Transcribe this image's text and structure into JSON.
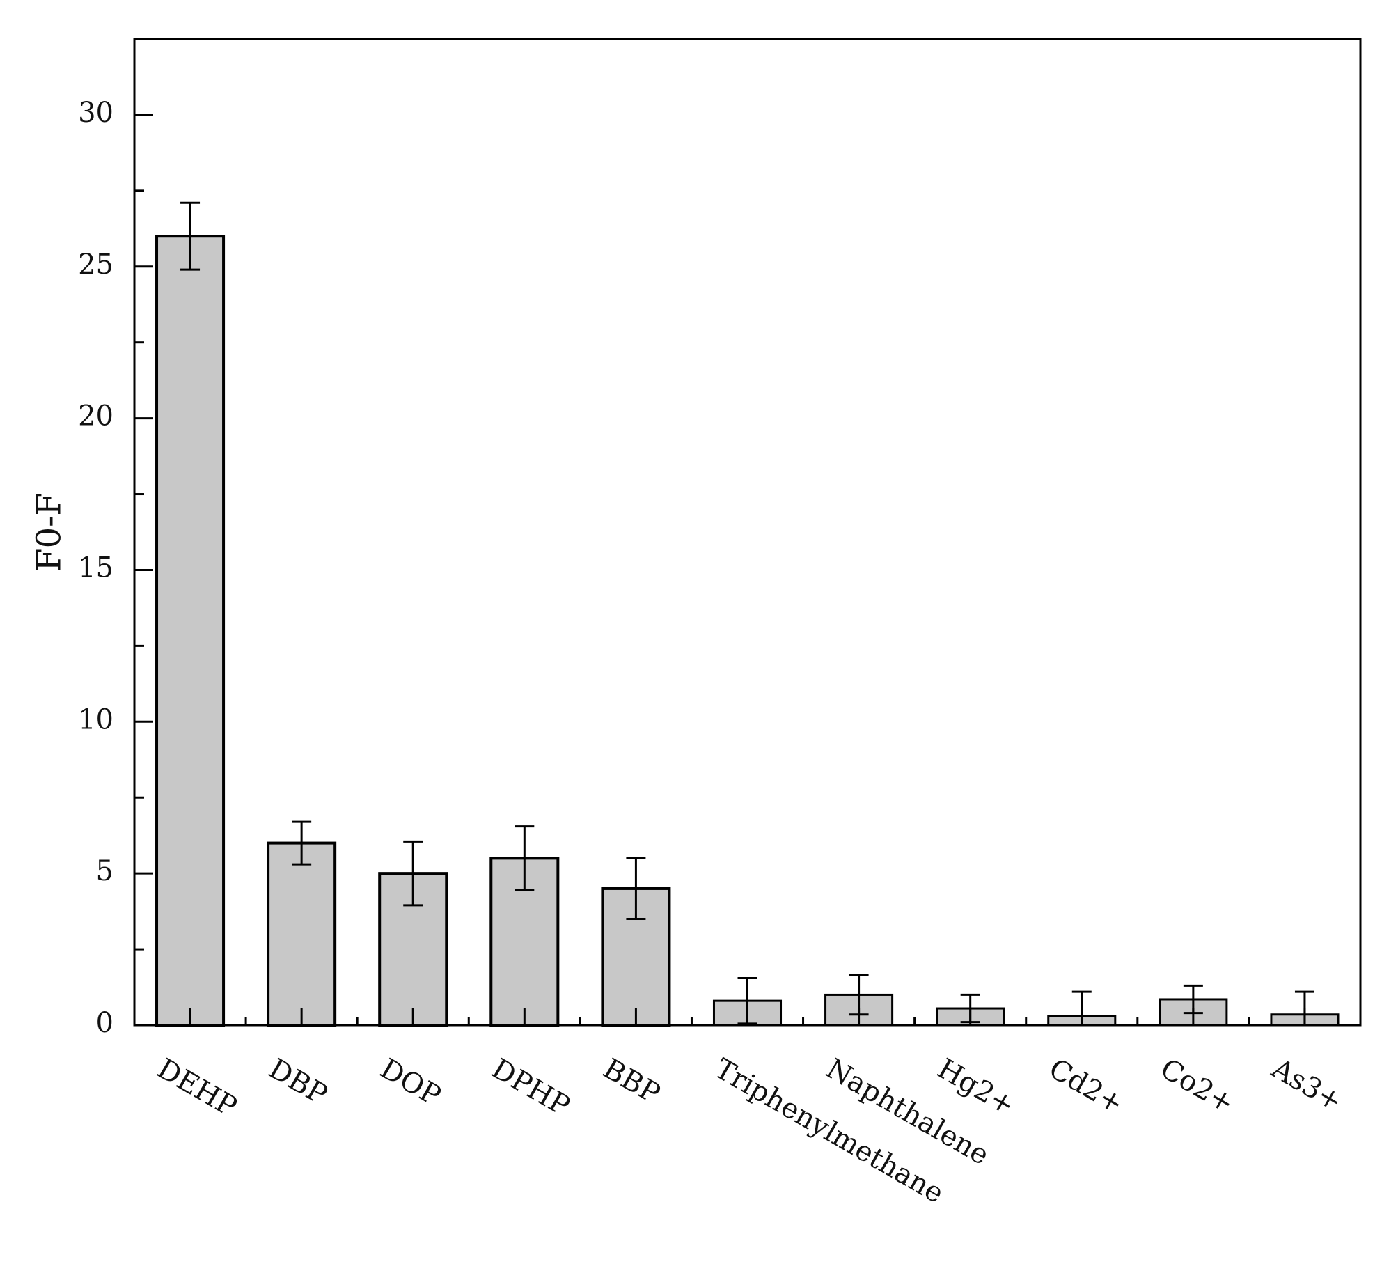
{
  "chart_data": {
    "type": "bar",
    "title": "",
    "xlabel": "",
    "ylabel": "F0-F",
    "ylim": [
      0,
      32.5
    ],
    "yticks": [
      0,
      5,
      10,
      15,
      20,
      25,
      30
    ],
    "ytick_labels": [
      "0",
      "5",
      "10",
      "15",
      "20",
      "25",
      "30"
    ],
    "grid": false,
    "legend": "none",
    "categories": [
      "DEHP",
      "DBP",
      "DOP",
      "DPHP",
      "BBP",
      "Triphenylmethane",
      "Naphthalene",
      "Hg2+",
      "Cd2+",
      "Co2+",
      "As3+"
    ],
    "values": [
      26.0,
      6.0,
      5.0,
      5.5,
      4.5,
      0.8,
      1.0,
      0.55,
      0.3,
      0.85,
      0.35
    ],
    "errors": [
      1.1,
      0.7,
      1.05,
      1.05,
      1.0,
      0.75,
      0.65,
      0.45,
      0.8,
      0.45,
      0.75
    ],
    "colors": {
      "bar_fill": "#c8c8c8",
      "bar_stroke": "#000000",
      "axis": "#000000"
    }
  }
}
